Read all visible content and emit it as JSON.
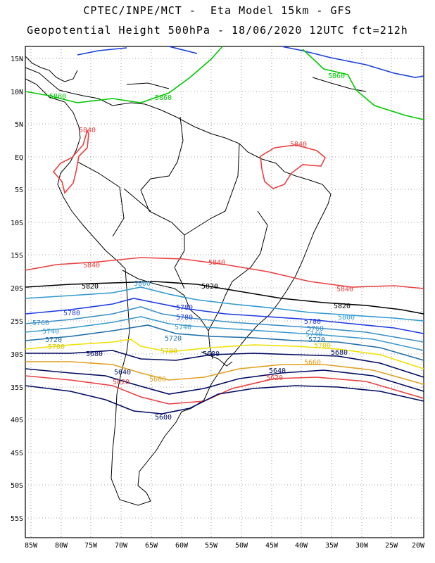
{
  "header": {
    "line1": "CPTEC/INPE/MCT -  Eta Model 15km - GFS",
    "line2": "Geopotential Height 500hPa - 18/06/2020 12UTC fct=212h"
  },
  "axes": {
    "lat_labels": [
      "15N",
      "10N",
      "5N",
      "EQ",
      "5S",
      "10S",
      "15S",
      "20S",
      "25S",
      "30S",
      "35S",
      "40S",
      "45S",
      "50S",
      "55S"
    ],
    "lon_labels": [
      "85W",
      "80W",
      "75W",
      "70W",
      "65W",
      "60W",
      "55W",
      "50W",
      "45W",
      "40W",
      "35W",
      "30W",
      "25W",
      "20W"
    ]
  },
  "contours": [
    {
      "value": "5880",
      "color": "#1a3fd6"
    },
    {
      "value": "5860",
      "color": "#00c800"
    },
    {
      "value": "5840",
      "color": "#e84040"
    },
    {
      "value": "5820",
      "color": "#000000"
    },
    {
      "value": "5800",
      "color": "#2f9ad0"
    },
    {
      "value": "5780",
      "color": "#1e3ae0"
    },
    {
      "value": "5760",
      "color": "#3a8fc6"
    },
    {
      "value": "5740",
      "color": "#3a9acb"
    },
    {
      "value": "5720",
      "color": "#1f6fa8"
    },
    {
      "value": "5700",
      "color": "#f0e000"
    },
    {
      "value": "5680",
      "color": "#000a60"
    },
    {
      "value": "5660",
      "color": "#e0a020"
    },
    {
      "value": "5640",
      "color": "#000a60"
    },
    {
      "value": "5620",
      "color": "#e84040"
    },
    {
      "value": "5600",
      "color": "#000a60"
    }
  ],
  "labels": {
    "l5860a": "5860",
    "l5860b": "5860",
    "l5860c": "5860",
    "l5840a": "5840",
    "l5840b": "5840",
    "l5840c": "5840",
    "l5840d": "5840",
    "l5840e": "5840",
    "l5820a": "5820",
    "l5820b": "5820",
    "l5820c": "5820",
    "l5800a": "5800",
    "l5800b": "5800",
    "l5780a": "5780",
    "l5780b": "5780",
    "l5780c": "5780",
    "l5780d": "5780",
    "l5760a": "5760",
    "l5760b": "5760",
    "l5740a": "5740",
    "l5740b": "5740",
    "l5740c": "5740",
    "l5720a": "5720",
    "l5720b": "5720",
    "l5720c": "5720",
    "l5700a": "5700",
    "l5700b": "5700",
    "l5700c": "5700",
    "l5680a": "5680",
    "l5680b": "5680",
    "l5680c": "5680",
    "l5660a": "5660",
    "l5660b": "5660",
    "l5640a": "5640",
    "l5640b": "5640",
    "l5620a": "5620",
    "l5620b": "5620",
    "l5600a": "5600"
  }
}
